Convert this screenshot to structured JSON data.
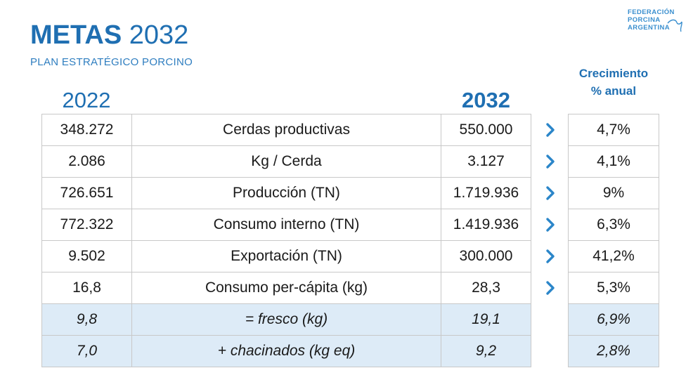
{
  "header": {
    "title_bold": "METAS",
    "title_year": "2032",
    "subtitle": "PLAN ESTRATÉGICO PORCINO",
    "logo_lines": [
      "FEDERACIÓN",
      "PORCINA",
      "ARGENTINA"
    ]
  },
  "columns": {
    "base_year": "2022",
    "target_year": "2032",
    "growth_line1": "Crecimiento",
    "growth_line2": "% anual"
  },
  "rows": [
    {
      "v2022": "348.272",
      "label": "Cerdas productivas",
      "v2032": "550.000",
      "growth": "4,7%",
      "arrow": true,
      "sub": false
    },
    {
      "v2022": "2.086",
      "label": "Kg / Cerda",
      "v2032": "3.127",
      "growth": "4,1%",
      "arrow": true,
      "sub": false
    },
    {
      "v2022": "726.651",
      "label": "Producción (TN)",
      "v2032": "1.719.936",
      "growth": "9%",
      "arrow": true,
      "sub": false
    },
    {
      "v2022": "772.322",
      "label": "Consumo interno (TN)",
      "v2032": "1.419.936",
      "growth": "6,3%",
      "arrow": true,
      "sub": false
    },
    {
      "v2022": "9.502",
      "label": "Exportación (TN)",
      "v2032": "300.000",
      "growth": "41,2%",
      "arrow": true,
      "sub": false
    },
    {
      "v2022": "16,8",
      "label": "Consumo per-cápita (kg)",
      "v2032": "28,3",
      "growth": "5,3%",
      "arrow": true,
      "sub": false
    },
    {
      "v2022": "9,8",
      "label": "= fresco (kg)",
      "v2032": "19,1",
      "growth": "6,9%",
      "arrow": false,
      "sub": true
    },
    {
      "v2022": "7,0",
      "label": "+   chacinados (kg eq)",
      "v2032": "9,2",
      "growth": "2,8%",
      "arrow": false,
      "sub": true
    }
  ],
  "colors": {
    "accent": "#1f6fb2",
    "arrow": "#2b86c9",
    "sub_row_bg": "#ddebf7"
  },
  "icons": {
    "arrow": "chevron-right-icon",
    "logo": "pig-tail-icon"
  }
}
